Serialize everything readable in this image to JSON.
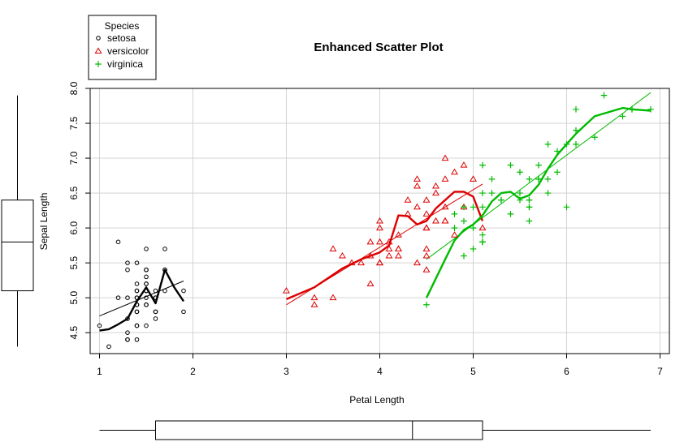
{
  "chart_data": {
    "type": "scatter",
    "title": "Enhanced Scatter Plot",
    "xlabel": "Petal Length",
    "ylabel": "Sepal Length",
    "xlim": [
      0.9,
      7.1
    ],
    "ylim": [
      4.2,
      8.0
    ],
    "x_ticks": [
      1,
      2,
      3,
      4,
      5,
      6,
      7
    ],
    "y_ticks": [
      4.5,
      5.0,
      5.5,
      6.0,
      6.5,
      7.0,
      7.5,
      8.0
    ],
    "grid": true,
    "legend": {
      "title": "Species",
      "position": "top-left"
    },
    "series": [
      {
        "name": "setosa",
        "marker": "circle",
        "color": "#000000",
        "points": [
          [
            1.4,
            5.1
          ],
          [
            1.4,
            4.9
          ],
          [
            1.3,
            4.7
          ],
          [
            1.5,
            4.6
          ],
          [
            1.4,
            5.0
          ],
          [
            1.7,
            5.4
          ],
          [
            1.4,
            4.6
          ],
          [
            1.5,
            5.0
          ],
          [
            1.4,
            4.4
          ],
          [
            1.5,
            4.9
          ],
          [
            1.5,
            5.4
          ],
          [
            1.6,
            4.8
          ],
          [
            1.4,
            4.8
          ],
          [
            1.1,
            4.3
          ],
          [
            1.2,
            5.8
          ],
          [
            1.5,
            5.7
          ],
          [
            1.3,
            5.4
          ],
          [
            1.4,
            5.1
          ],
          [
            1.7,
            5.7
          ],
          [
            1.5,
            5.1
          ],
          [
            1.7,
            5.4
          ],
          [
            1.5,
            5.1
          ],
          [
            1.0,
            4.6
          ],
          [
            1.7,
            5.1
          ],
          [
            1.9,
            4.8
          ],
          [
            1.6,
            5.0
          ],
          [
            1.6,
            5.0
          ],
          [
            1.5,
            5.2
          ],
          [
            1.4,
            5.2
          ],
          [
            1.6,
            4.7
          ],
          [
            1.6,
            4.8
          ],
          [
            1.5,
            5.4
          ],
          [
            1.5,
            5.2
          ],
          [
            1.4,
            5.5
          ],
          [
            1.5,
            4.9
          ],
          [
            1.2,
            5.0
          ],
          [
            1.3,
            5.5
          ],
          [
            1.4,
            4.9
          ],
          [
            1.3,
            4.4
          ],
          [
            1.5,
            5.1
          ],
          [
            1.3,
            5.0
          ],
          [
            1.3,
            4.5
          ],
          [
            1.3,
            4.4
          ],
          [
            1.6,
            5.0
          ],
          [
            1.9,
            5.1
          ],
          [
            1.4,
            4.8
          ],
          [
            1.6,
            5.1
          ],
          [
            1.4,
            4.6
          ],
          [
            1.5,
            5.3
          ],
          [
            1.4,
            5.0
          ]
        ],
        "smooth": [
          [
            1.0,
            4.53
          ],
          [
            1.1,
            4.55
          ],
          [
            1.2,
            4.62
          ],
          [
            1.3,
            4.7
          ],
          [
            1.4,
            4.95
          ],
          [
            1.5,
            5.15
          ],
          [
            1.6,
            4.92
          ],
          [
            1.7,
            5.4
          ],
          [
            1.8,
            5.15
          ],
          [
            1.9,
            4.95
          ]
        ],
        "fit": [
          [
            1.0,
            4.74
          ],
          [
            1.9,
            5.24
          ]
        ]
      },
      {
        "name": "versicolor",
        "marker": "triangle",
        "color": "#dd0000",
        "points": [
          [
            4.7,
            7.0
          ],
          [
            4.5,
            6.4
          ],
          [
            4.9,
            6.9
          ],
          [
            4.0,
            5.5
          ],
          [
            4.6,
            6.5
          ],
          [
            4.5,
            5.7
          ],
          [
            4.7,
            6.3
          ],
          [
            3.3,
            4.9
          ],
          [
            4.6,
            6.6
          ],
          [
            3.9,
            5.2
          ],
          [
            3.5,
            5.0
          ],
          [
            4.2,
            5.9
          ],
          [
            4.0,
            6.0
          ],
          [
            4.7,
            6.1
          ],
          [
            3.6,
            5.6
          ],
          [
            4.4,
            6.7
          ],
          [
            4.5,
            5.6
          ],
          [
            4.1,
            5.8
          ],
          [
            4.5,
            6.2
          ],
          [
            3.9,
            5.6
          ],
          [
            4.8,
            5.9
          ],
          [
            4.0,
            6.1
          ],
          [
            4.9,
            6.3
          ],
          [
            4.7,
            6.1
          ],
          [
            4.3,
            6.4
          ],
          [
            4.4,
            6.6
          ],
          [
            4.8,
            6.8
          ],
          [
            5.0,
            6.7
          ],
          [
            4.5,
            6.0
          ],
          [
            3.5,
            5.7
          ],
          [
            3.8,
            5.5
          ],
          [
            3.7,
            5.5
          ],
          [
            3.9,
            5.8
          ],
          [
            5.1,
            6.0
          ],
          [
            4.5,
            5.4
          ],
          [
            4.5,
            6.0
          ],
          [
            4.7,
            6.7
          ],
          [
            4.4,
            6.3
          ],
          [
            4.1,
            5.6
          ],
          [
            4.0,
            5.5
          ],
          [
            4.4,
            5.5
          ],
          [
            4.6,
            6.1
          ],
          [
            4.0,
            5.8
          ],
          [
            3.3,
            5.0
          ],
          [
            4.2,
            5.6
          ],
          [
            4.2,
            5.7
          ],
          [
            4.2,
            5.7
          ],
          [
            4.3,
            6.2
          ],
          [
            3.0,
            5.1
          ],
          [
            4.1,
            5.7
          ]
        ],
        "smooth": [
          [
            3.0,
            4.98
          ],
          [
            3.3,
            5.15
          ],
          [
            3.6,
            5.42
          ],
          [
            3.8,
            5.55
          ],
          [
            4.0,
            5.65
          ],
          [
            4.1,
            5.75
          ],
          [
            4.2,
            6.18
          ],
          [
            4.3,
            6.17
          ],
          [
            4.4,
            6.05
          ],
          [
            4.5,
            6.1
          ],
          [
            4.6,
            6.28
          ],
          [
            4.7,
            6.4
          ],
          [
            4.8,
            6.52
          ],
          [
            4.9,
            6.52
          ],
          [
            5.0,
            6.45
          ],
          [
            5.1,
            6.1
          ]
        ],
        "fit": [
          [
            3.0,
            4.9
          ],
          [
            5.1,
            6.63
          ]
        ]
      },
      {
        "name": "virginica",
        "marker": "plus",
        "color": "#00bb00",
        "points": [
          [
            6.0,
            6.3
          ],
          [
            5.1,
            5.8
          ],
          [
            5.9,
            7.1
          ],
          [
            5.6,
            6.3
          ],
          [
            5.8,
            6.5
          ],
          [
            6.6,
            7.6
          ],
          [
            4.5,
            4.9
          ],
          [
            6.3,
            7.3
          ],
          [
            5.8,
            6.7
          ],
          [
            6.1,
            7.2
          ],
          [
            5.1,
            6.5
          ],
          [
            5.3,
            6.4
          ],
          [
            5.5,
            6.8
          ],
          [
            5.0,
            5.7
          ],
          [
            5.1,
            5.8
          ],
          [
            5.3,
            6.4
          ],
          [
            5.5,
            6.5
          ],
          [
            6.7,
            7.7
          ],
          [
            6.9,
            7.7
          ],
          [
            5.0,
            6.0
          ],
          [
            5.7,
            6.9
          ],
          [
            4.9,
            5.6
          ],
          [
            6.7,
            7.7
          ],
          [
            4.9,
            6.3
          ],
          [
            5.7,
            6.7
          ],
          [
            6.0,
            7.2
          ],
          [
            4.8,
            6.2
          ],
          [
            4.9,
            6.1
          ],
          [
            5.6,
            6.4
          ],
          [
            5.8,
            7.2
          ],
          [
            6.1,
            7.4
          ],
          [
            6.4,
            7.9
          ],
          [
            5.6,
            6.4
          ],
          [
            5.1,
            6.3
          ],
          [
            5.6,
            6.1
          ],
          [
            6.1,
            7.7
          ],
          [
            5.6,
            6.3
          ],
          [
            5.5,
            6.4
          ],
          [
            4.8,
            6.0
          ],
          [
            5.4,
            6.9
          ],
          [
            5.6,
            6.7
          ],
          [
            5.1,
            6.9
          ],
          [
            5.1,
            5.8
          ],
          [
            5.9,
            6.8
          ],
          [
            5.7,
            6.7
          ],
          [
            5.2,
            6.7
          ],
          [
            5.0,
            6.3
          ],
          [
            5.2,
            6.5
          ],
          [
            5.4,
            6.2
          ],
          [
            5.1,
            5.9
          ]
        ],
        "smooth": [
          [
            4.5,
            5.0
          ],
          [
            4.7,
            5.55
          ],
          [
            4.8,
            5.82
          ],
          [
            4.9,
            5.97
          ],
          [
            5.0,
            6.05
          ],
          [
            5.1,
            6.18
          ],
          [
            5.2,
            6.38
          ],
          [
            5.3,
            6.5
          ],
          [
            5.4,
            6.52
          ],
          [
            5.5,
            6.42
          ],
          [
            5.6,
            6.47
          ],
          [
            5.7,
            6.62
          ],
          [
            5.8,
            6.85
          ],
          [
            5.9,
            7.05
          ],
          [
            6.0,
            7.2
          ],
          [
            6.1,
            7.35
          ],
          [
            6.3,
            7.6
          ],
          [
            6.6,
            7.72
          ],
          [
            6.7,
            7.7
          ],
          [
            6.9,
            7.68
          ]
        ],
        "fit": [
          [
            4.5,
            5.55
          ],
          [
            6.9,
            7.94
          ]
        ]
      }
    ],
    "marginal_boxplots": {
      "x": {
        "min": 1.0,
        "q1": 1.6,
        "median": 4.35,
        "q3": 5.1,
        "max": 6.9
      },
      "y": {
        "min": 4.3,
        "q1": 5.1,
        "median": 5.8,
        "q3": 6.4,
        "max": 7.9
      }
    }
  }
}
